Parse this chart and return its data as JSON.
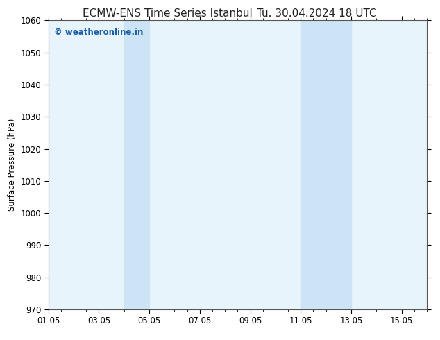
{
  "title_left": "ECMW-ENS Time Series Istanbul",
  "title_right": "Tu. 30.04.2024 18 UTC",
  "ylabel": "Surface Pressure (hPa)",
  "ylim": [
    970,
    1060
  ],
  "yticks": [
    970,
    980,
    990,
    1000,
    1010,
    1020,
    1030,
    1040,
    1050,
    1060
  ],
  "xlim": [
    1.0,
    16.0
  ],
  "xtick_positions": [
    1,
    3,
    5,
    7,
    9,
    11,
    13,
    15
  ],
  "xtick_labels": [
    "01.05",
    "03.05",
    "05.05",
    "07.05",
    "09.05",
    "11.05",
    "13.05",
    "15.05"
  ],
  "plot_bg_color": "#e8f4fb",
  "shaded_bands": [
    {
      "xmin": 4.0,
      "xmax": 5.0
    },
    {
      "xmin": 11.0,
      "xmax": 13.0
    }
  ],
  "shaded_color": "#cce4f5",
  "fig_bg_color": "#ffffff",
  "watermark_text": "© weatheronline.in",
  "watermark_color": "#1a5fa8",
  "watermark_fontsize": 8.5,
  "title_fontsize": 11,
  "tick_fontsize": 8.5,
  "ylabel_fontsize": 8.5,
  "spine_color": "#555555"
}
